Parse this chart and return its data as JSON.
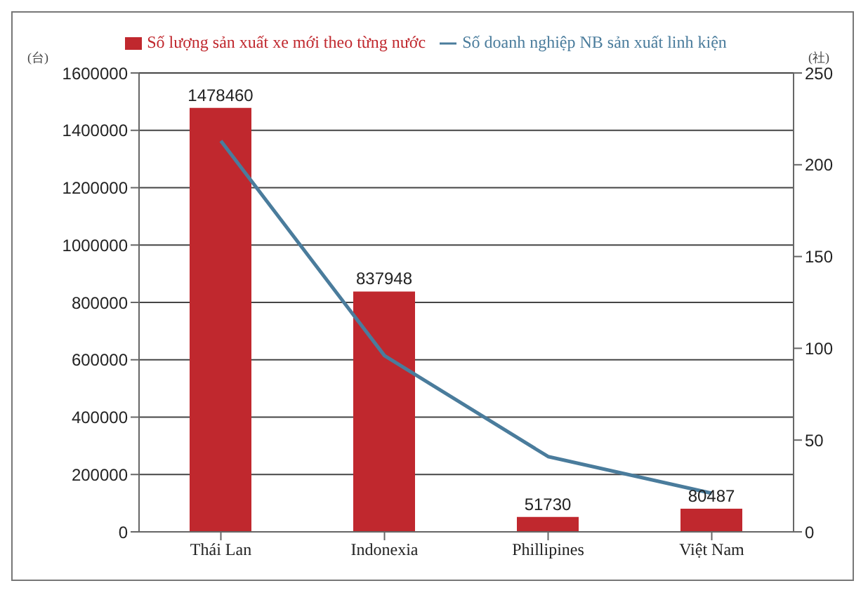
{
  "chart_data": {
    "type": "bar",
    "ylabel": "(台)",
    "y2label": "(社)",
    "categories": [
      "Thái Lan",
      "Indonexia",
      "Phillipines",
      "Việt Nam"
    ],
    "series": [
      {
        "name": "Số lượng sản xuất xe mới theo từng nước",
        "color": "#c0282e",
        "values": [
          1478460,
          837948,
          51730,
          80487
        ],
        "value_labels": [
          "1478460",
          "837948",
          "51730",
          "80487"
        ]
      },
      {
        "name": "Số doanh nghiệp NB sản xuất linh kiện",
        "type": "line",
        "axis": "y2",
        "color": "#4a7c9c",
        "values": [
          213,
          96,
          41,
          21
        ]
      }
    ],
    "ylim": [
      0,
      1600000
    ],
    "yticks": [
      0,
      200000,
      400000,
      600000,
      800000,
      1000000,
      1200000,
      1400000,
      1600000
    ],
    "y2lim": [
      0,
      250
    ],
    "y2ticks": [
      0,
      50,
      100,
      150,
      200,
      250
    ],
    "grid": "y",
    "legend": "top",
    "marker": "none",
    "line_style": "solid"
  }
}
